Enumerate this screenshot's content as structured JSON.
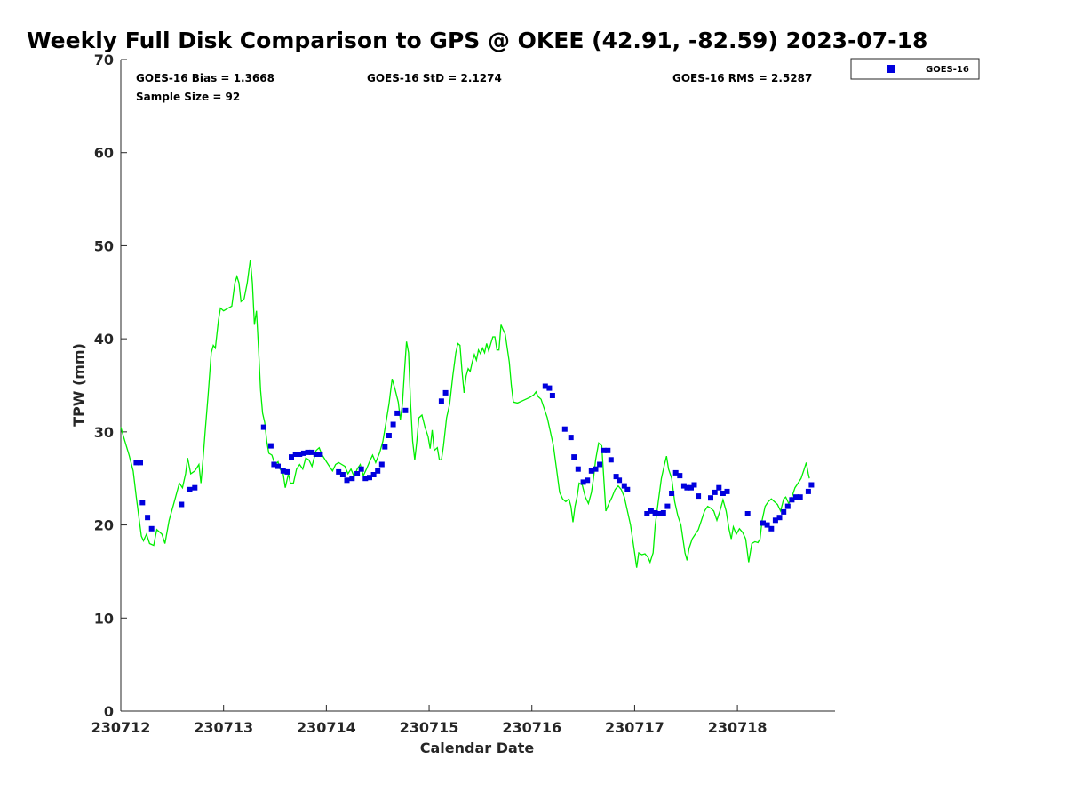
{
  "chart_data": {
    "type": "line+scatter",
    "title": "Weekly Full Disk Comparison to GPS @ OKEE (42.91, -82.59) 2023-07-18",
    "xlabel": "Calendar Date",
    "ylabel": "TPW (mm)",
    "xlim": [
      0,
      6.95
    ],
    "ylim": [
      0,
      70
    ],
    "x_tick_labels": [
      "230712",
      "230713",
      "230714",
      "230715",
      "230716",
      "230717",
      "230718"
    ],
    "x_tick_values": [
      0,
      1,
      2,
      3,
      4,
      5,
      6
    ],
    "y_tick_values": [
      0,
      10,
      20,
      30,
      40,
      50,
      60,
      70
    ],
    "y_tick_labels": [
      "0",
      "10",
      "20",
      "30",
      "40",
      "50",
      "60",
      "70"
    ],
    "stats": {
      "bias": "GOES-16 Bias = 1.3668",
      "std": "GOES-16 StD = 2.1274",
      "rms": "GOES-16 RMS = 2.5287",
      "sample": "Sample Size = 92"
    },
    "legend": {
      "label": "GOES-16",
      "location": "top-right-outside"
    },
    "colors": {
      "gps_line": "#00ee00",
      "goes_marker": "#0000dd"
    },
    "gps_series": {
      "name": "GPS",
      "points": [
        [
          0,
          30.5
        ],
        [
          0.04,
          29
        ],
        [
          0.08,
          27.5
        ],
        [
          0.12,
          25.8
        ],
        [
          0.15,
          23
        ],
        [
          0.18,
          20.5
        ],
        [
          0.2,
          18.8
        ],
        [
          0.22,
          18.3
        ],
        [
          0.25,
          19
        ],
        [
          0.28,
          18
        ],
        [
          0.32,
          17.8
        ],
        [
          0.35,
          19.5
        ],
        [
          0.4,
          19
        ],
        [
          0.43,
          18
        ],
        [
          0.47,
          20.5
        ],
        [
          0.52,
          22.5
        ],
        [
          0.57,
          24.5
        ],
        [
          0.6,
          24
        ],
        [
          0.63,
          25.5
        ],
        [
          0.65,
          27.2
        ],
        [
          0.68,
          25.5
        ],
        [
          0.72,
          25.8
        ],
        [
          0.76,
          26.5
        ],
        [
          0.78,
          24.5
        ],
        [
          0.8,
          27
        ],
        [
          0.82,
          30
        ],
        [
          0.85,
          34
        ],
        [
          0.88,
          38.5
        ],
        [
          0.9,
          39.3
        ],
        [
          0.92,
          39
        ],
        [
          0.95,
          42
        ],
        [
          0.97,
          43.3
        ],
        [
          1.0,
          43
        ],
        [
          1.03,
          43.2
        ],
        [
          1.08,
          43.5
        ],
        [
          1.11,
          46
        ],
        [
          1.13,
          46.7
        ],
        [
          1.15,
          46
        ],
        [
          1.17,
          44
        ],
        [
          1.2,
          44.3
        ],
        [
          1.23,
          46
        ],
        [
          1.26,
          48.5
        ],
        [
          1.28,
          46
        ],
        [
          1.3,
          41.5
        ],
        [
          1.32,
          43
        ],
        [
          1.34,
          39
        ],
        [
          1.36,
          34.5
        ],
        [
          1.38,
          32
        ],
        [
          1.4,
          31
        ],
        [
          1.42,
          29
        ],
        [
          1.44,
          27.7
        ],
        [
          1.47,
          27.5
        ],
        [
          1.5,
          26.5
        ],
        [
          1.53,
          26.8
        ],
        [
          1.55,
          26
        ],
        [
          1.58,
          25.5
        ],
        [
          1.6,
          24
        ],
        [
          1.63,
          25.5
        ],
        [
          1.65,
          24.5
        ],
        [
          1.68,
          24.5
        ],
        [
          1.71,
          26
        ],
        [
          1.74,
          26.5
        ],
        [
          1.77,
          26
        ],
        [
          1.8,
          27.2
        ],
        [
          1.83,
          27
        ],
        [
          1.86,
          26.3
        ],
        [
          1.9,
          28
        ],
        [
          1.93,
          28.3
        ],
        [
          1.96,
          27.5
        ],
        [
          2.0,
          26.8
        ],
        [
          2.03,
          26.3
        ],
        [
          2.06,
          25.8
        ],
        [
          2.09,
          26.5
        ],
        [
          2.12,
          26.7
        ],
        [
          2.15,
          26.5
        ],
        [
          2.18,
          26.3
        ],
        [
          2.21,
          25.5
        ],
        [
          2.24,
          26
        ],
        [
          2.27,
          25.2
        ],
        [
          2.3,
          26
        ],
        [
          2.33,
          26.5
        ],
        [
          2.36,
          25.3
        ],
        [
          2.39,
          26
        ],
        [
          2.42,
          26.8
        ],
        [
          2.45,
          27.5
        ],
        [
          2.48,
          26.7
        ],
        [
          2.52,
          27.8
        ],
        [
          2.55,
          29
        ],
        [
          2.58,
          31
        ],
        [
          2.61,
          33
        ],
        [
          2.64,
          35.7
        ],
        [
          2.67,
          34.5
        ],
        [
          2.7,
          33.2
        ],
        [
          2.72,
          31.3
        ],
        [
          2.74,
          33
        ],
        [
          2.76,
          36.5
        ],
        [
          2.78,
          39.7
        ],
        [
          2.8,
          38.5
        ],
        [
          2.82,
          33
        ],
        [
          2.84,
          29
        ],
        [
          2.86,
          27
        ],
        [
          2.88,
          29
        ],
        [
          2.9,
          31.5
        ],
        [
          2.93,
          31.8
        ],
        [
          2.96,
          30.5
        ],
        [
          2.99,
          29.5
        ],
        [
          3.01,
          28.2
        ],
        [
          3.03,
          30.2
        ],
        [
          3.05,
          28
        ],
        [
          3.08,
          28.3
        ],
        [
          3.1,
          27
        ],
        [
          3.12,
          27
        ],
        [
          3.14,
          28.5
        ],
        [
          3.17,
          31.5
        ],
        [
          3.2,
          33
        ],
        [
          3.23,
          36
        ],
        [
          3.26,
          38.5
        ],
        [
          3.28,
          39.5
        ],
        [
          3.3,
          39.3
        ],
        [
          3.32,
          36.5
        ],
        [
          3.34,
          34.2
        ],
        [
          3.36,
          36
        ],
        [
          3.38,
          36.8
        ],
        [
          3.4,
          36.5
        ],
        [
          3.42,
          37.5
        ],
        [
          3.44,
          38.3
        ],
        [
          3.46,
          37.7
        ],
        [
          3.48,
          38.8
        ],
        [
          3.5,
          38.4
        ],
        [
          3.52,
          39
        ],
        [
          3.54,
          38.5
        ],
        [
          3.56,
          39.5
        ],
        [
          3.58,
          38.7
        ],
        [
          3.6,
          39.5
        ],
        [
          3.62,
          40.2
        ],
        [
          3.64,
          40.2
        ],
        [
          3.66,
          38.8
        ],
        [
          3.68,
          38.8
        ],
        [
          3.7,
          41.5
        ],
        [
          3.72,
          41
        ],
        [
          3.74,
          40.5
        ],
        [
          3.76,
          39
        ],
        [
          3.78,
          37.5
        ],
        [
          3.8,
          35
        ],
        [
          3.82,
          33.2
        ],
        [
          3.86,
          33.1
        ],
        [
          3.9,
          33.3
        ],
        [
          3.94,
          33.5
        ],
        [
          3.98,
          33.7
        ],
        [
          4.02,
          34
        ],
        [
          4.04,
          34.3
        ],
        [
          4.06,
          33.8
        ],
        [
          4.09,
          33.5
        ],
        [
          4.12,
          32.5
        ],
        [
          4.15,
          31.5
        ],
        [
          4.18,
          30
        ],
        [
          4.21,
          28.5
        ],
        [
          4.24,
          26
        ],
        [
          4.27,
          23.5
        ],
        [
          4.3,
          22.8
        ],
        [
          4.33,
          22.5
        ],
        [
          4.36,
          22.8
        ],
        [
          4.38,
          22
        ],
        [
          4.4,
          20.3
        ],
        [
          4.42,
          22
        ],
        [
          4.44,
          23
        ],
        [
          4.46,
          24.5
        ],
        [
          4.49,
          24.3
        ],
        [
          4.52,
          23
        ],
        [
          4.55,
          22.3
        ],
        [
          4.58,
          23.5
        ],
        [
          4.6,
          25
        ],
        [
          4.62,
          27
        ],
        [
          4.65,
          28.8
        ],
        [
          4.68,
          28.5
        ],
        [
          4.7,
          25
        ],
        [
          4.72,
          21.5
        ],
        [
          4.75,
          22.3
        ],
        [
          4.78,
          23
        ],
        [
          4.81,
          23.8
        ],
        [
          4.84,
          24.2
        ],
        [
          4.87,
          23.8
        ],
        [
          4.9,
          23
        ],
        [
          4.93,
          21.5
        ],
        [
          4.96,
          20
        ],
        [
          4.98,
          18.5
        ],
        [
          5.0,
          17
        ],
        [
          5.02,
          15.4
        ],
        [
          5.04,
          17
        ],
        [
          5.07,
          16.8
        ],
        [
          5.1,
          16.9
        ],
        [
          5.13,
          16.5
        ],
        [
          5.15,
          16
        ],
        [
          5.18,
          17
        ],
        [
          5.2,
          20
        ],
        [
          5.23,
          22.5
        ],
        [
          5.26,
          25
        ],
        [
          5.29,
          26.5
        ],
        [
          5.31,
          27.4
        ],
        [
          5.33,
          26
        ],
        [
          5.36,
          25
        ],
        [
          5.39,
          22.5
        ],
        [
          5.42,
          21
        ],
        [
          5.45,
          20
        ],
        [
          5.47,
          18.5
        ],
        [
          5.49,
          17
        ],
        [
          5.51,
          16.2
        ],
        [
          5.53,
          17.5
        ],
        [
          5.56,
          18.5
        ],
        [
          5.59,
          19
        ],
        [
          5.62,
          19.5
        ],
        [
          5.65,
          20.5
        ],
        [
          5.68,
          21.5
        ],
        [
          5.71,
          22
        ],
        [
          5.74,
          21.8
        ],
        [
          5.77,
          21.5
        ],
        [
          5.8,
          20.5
        ],
        [
          5.83,
          21.5
        ],
        [
          5.86,
          22.7
        ],
        [
          5.89,
          21.5
        ],
        [
          5.92,
          19.5
        ],
        [
          5.94,
          18.5
        ],
        [
          5.96,
          19.8
        ],
        [
          5.99,
          19
        ],
        [
          6.02,
          19.6
        ],
        [
          6.05,
          19.2
        ],
        [
          6.08,
          18.5
        ],
        [
          6.11,
          16
        ],
        [
          6.14,
          18
        ],
        [
          6.17,
          18.2
        ],
        [
          6.2,
          18.1
        ],
        [
          6.22,
          18.5
        ],
        [
          6.24,
          20.5
        ],
        [
          6.27,
          22
        ],
        [
          6.3,
          22.5
        ],
        [
          6.33,
          22.8
        ],
        [
          6.36,
          22.5
        ],
        [
          6.39,
          22.2
        ],
        [
          6.42,
          21.5
        ],
        [
          6.45,
          22.8
        ],
        [
          6.47,
          23
        ],
        [
          6.5,
          22.3
        ],
        [
          6.53,
          23
        ],
        [
          6.56,
          24
        ],
        [
          6.59,
          24.5
        ],
        [
          6.62,
          25
        ],
        [
          6.65,
          26
        ],
        [
          6.67,
          26.7
        ],
        [
          6.69,
          25.5
        ],
        [
          6.7,
          25
        ]
      ]
    },
    "goes_series": {
      "name": "GOES-16",
      "points": [
        [
          0.15,
          26.7
        ],
        [
          0.19,
          26.7
        ],
        [
          0.21,
          22.4
        ],
        [
          0.26,
          20.8
        ],
        [
          0.3,
          19.6
        ],
        [
          0.59,
          22.2
        ],
        [
          0.67,
          23.8
        ],
        [
          0.72,
          24
        ],
        [
          1.39,
          30.5
        ],
        [
          1.46,
          28.5
        ],
        [
          1.49,
          26.5
        ],
        [
          1.53,
          26.3
        ],
        [
          1.58,
          25.8
        ],
        [
          1.62,
          25.7
        ],
        [
          1.66,
          27.3
        ],
        [
          1.7,
          27.6
        ],
        [
          1.74,
          27.6
        ],
        [
          1.78,
          27.7
        ],
        [
          1.82,
          27.8
        ],
        [
          1.86,
          27.8
        ],
        [
          1.9,
          27.6
        ],
        [
          1.94,
          27.6
        ],
        [
          2.12,
          25.7
        ],
        [
          2.16,
          25.4
        ],
        [
          2.2,
          24.8
        ],
        [
          2.25,
          25
        ],
        [
          2.3,
          25.5
        ],
        [
          2.34,
          26
        ],
        [
          2.38,
          25
        ],
        [
          2.42,
          25.1
        ],
        [
          2.46,
          25.4
        ],
        [
          2.5,
          25.8
        ],
        [
          2.54,
          26.5
        ],
        [
          2.57,
          28.4
        ],
        [
          2.61,
          29.6
        ],
        [
          2.65,
          30.8
        ],
        [
          2.69,
          32
        ],
        [
          2.77,
          32.3
        ],
        [
          3.12,
          33.3
        ],
        [
          3.16,
          34.2
        ],
        [
          4.13,
          34.9
        ],
        [
          4.17,
          34.7
        ],
        [
          4.2,
          33.9
        ],
        [
          4.32,
          30.3
        ],
        [
          4.38,
          29.4
        ],
        [
          4.41,
          27.3
        ],
        [
          4.45,
          26
        ],
        [
          4.5,
          24.6
        ],
        [
          4.54,
          24.8
        ],
        [
          4.58,
          25.8
        ],
        [
          4.62,
          26
        ],
        [
          4.66,
          26.5
        ],
        [
          4.7,
          28
        ],
        [
          4.74,
          28
        ],
        [
          4.77,
          27
        ],
        [
          4.82,
          25.2
        ],
        [
          4.85,
          24.8
        ],
        [
          4.9,
          24.2
        ],
        [
          4.93,
          23.8
        ],
        [
          5.12,
          21.2
        ],
        [
          5.16,
          21.5
        ],
        [
          5.2,
          21.3
        ],
        [
          5.24,
          21.2
        ],
        [
          5.28,
          21.3
        ],
        [
          5.32,
          22
        ],
        [
          5.36,
          23.4
        ],
        [
          5.4,
          25.6
        ],
        [
          5.44,
          25.3
        ],
        [
          5.48,
          24.2
        ],
        [
          5.51,
          24
        ],
        [
          5.55,
          24
        ],
        [
          5.58,
          24.3
        ],
        [
          5.62,
          23.1
        ],
        [
          5.74,
          22.9
        ],
        [
          5.78,
          23.5
        ],
        [
          5.82,
          24
        ],
        [
          5.86,
          23.4
        ],
        [
          5.9,
          23.6
        ],
        [
          6.1,
          21.2
        ],
        [
          6.25,
          20.2
        ],
        [
          6.29,
          20
        ],
        [
          6.33,
          19.6
        ],
        [
          6.37,
          20.5
        ],
        [
          6.41,
          20.8
        ],
        [
          6.45,
          21.4
        ],
        [
          6.49,
          22
        ],
        [
          6.53,
          22.7
        ],
        [
          6.57,
          23
        ],
        [
          6.61,
          23
        ],
        [
          6.69,
          23.6
        ],
        [
          6.72,
          24.3
        ]
      ]
    }
  }
}
